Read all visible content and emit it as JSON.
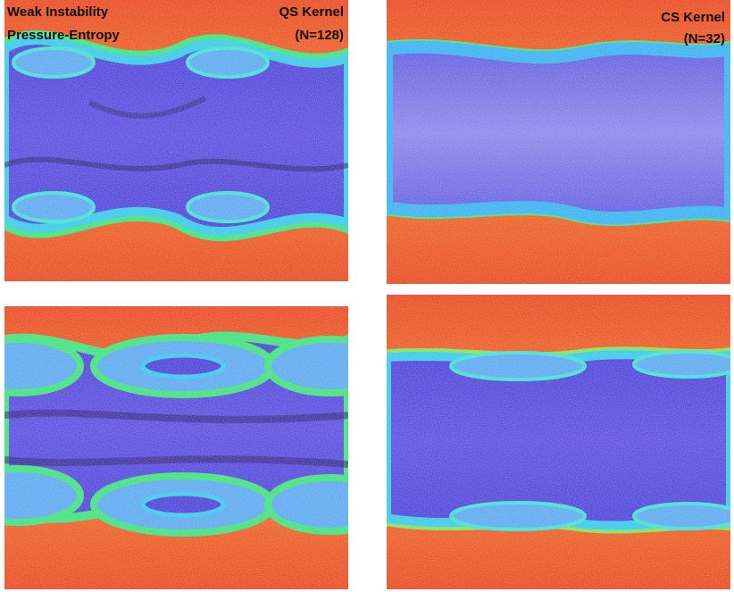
{
  "annotations": {
    "left_title": [
      "Weak Instability",
      "Pressure-Entropy"
    ],
    "left_kernel": [
      "QS Kernel",
      "(N=128)"
    ],
    "right_kernel": [
      "CS Kernel",
      "(N=32)"
    ]
  }
}
